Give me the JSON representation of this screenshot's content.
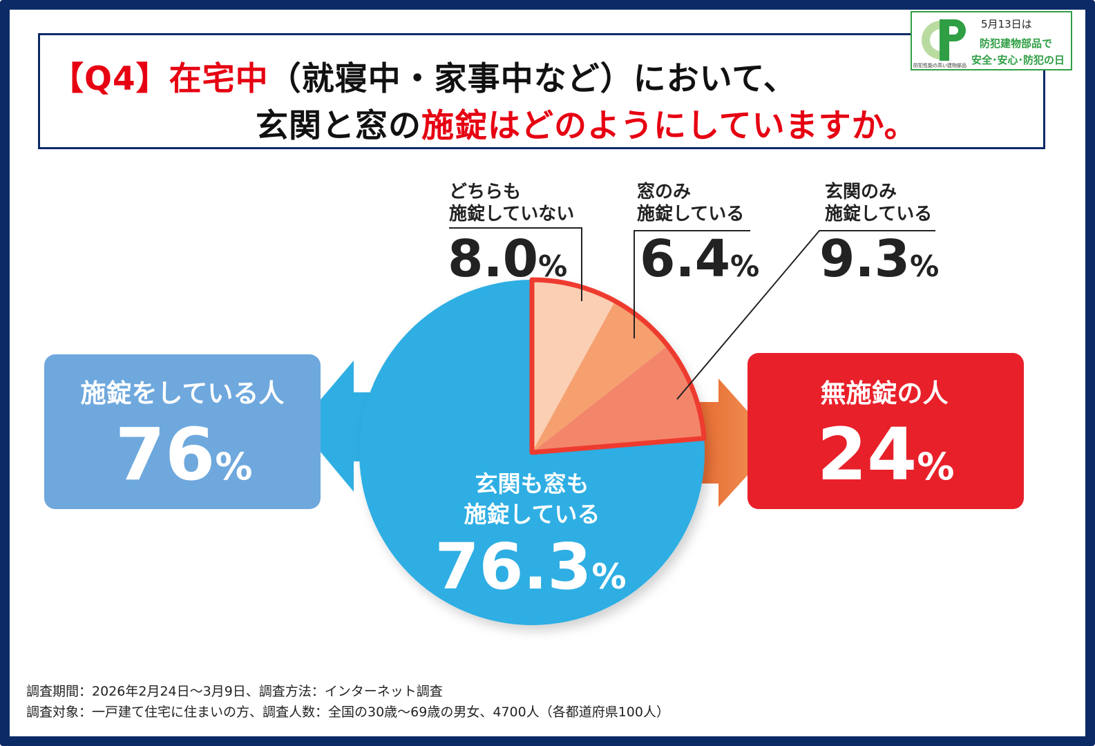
{
  "title": {
    "line1_red": "【Q4】在宅中",
    "line1_black": "（就寝中・家事中など）において、",
    "line2_black": "玄関と窓の",
    "line2_red": "施錠はどのようにしていますか。"
  },
  "badge": {
    "logo_letters": "CP",
    "logo_sub": "防犯性能の高い建物部品",
    "line1": "5月13日は",
    "line2": "防犯建物部品で",
    "line3": "安全･安心･防犯の日"
  },
  "colors": {
    "frame": "#0b2a66",
    "blue_pie": "#2faee3",
    "blue_box": "#6ea8dd",
    "red_box": "#e8202a",
    "red_outline": "#ee3b2f",
    "slice_light": "#fbcfb4",
    "slice_mid": "#f6a070",
    "slice_dark": "#f2856a",
    "orange_arrow": "#ef7a3c"
  },
  "chart_data": {
    "type": "pie",
    "slices": [
      {
        "label_lines": [
          "玄関も窓も",
          "施錠している"
        ],
        "value": 76.3,
        "display": "76.3",
        "unit": "%"
      },
      {
        "label_lines": [
          "どちらも",
          "施錠していない"
        ],
        "value": 8.0,
        "display": "8.0",
        "unit": "%"
      },
      {
        "label_lines": [
          "窓のみ",
          "施錠している"
        ],
        "value": 6.4,
        "display": "6.4",
        "unit": "%"
      },
      {
        "label_lines": [
          "玄関のみ",
          "施錠している"
        ],
        "value": 9.3,
        "display": "9.3",
        "unit": "%"
      }
    ],
    "summary": [
      {
        "label": "施錠をしている人",
        "value": 76,
        "unit": "%"
      },
      {
        "label": "無施錠の人",
        "value": 24,
        "unit": "%"
      }
    ]
  },
  "footer": {
    "line1": "調査期間：2026年2月24日～3月9日、調査方法：インターネット調査",
    "line2": "調査対象：一戸建て住宅に住まいの方、調査人数：全国の30歳～69歳の男女、4700人（各都道府県100人）"
  }
}
